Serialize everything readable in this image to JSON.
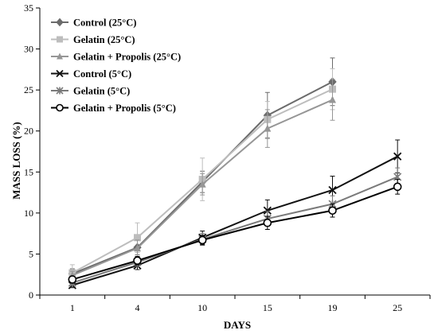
{
  "chart_data": {
    "type": "line",
    "xlabel": "DAYS",
    "ylabel": "MASS LOSS (%)",
    "categories": [
      "1",
      "4",
      "10",
      "15",
      "19",
      "25"
    ],
    "ylim": [
      0,
      35
    ],
    "yticks": [
      0,
      5,
      10,
      15,
      20,
      25,
      30,
      35
    ],
    "grid": false,
    "legend_position": "top-left",
    "series": [
      {
        "name": "Control (25°C)",
        "color": "#6b6b6b",
        "marker": "diamond",
        "values": [
          2.6,
          5.8,
          13.8,
          21.9,
          26.0,
          null
        ],
        "errors": [
          0.6,
          0.9,
          1.3,
          2.8,
          2.9,
          null
        ]
      },
      {
        "name": "Gelatin (25°C)",
        "color": "#bdbdbd",
        "marker": "square",
        "values": [
          2.7,
          7.0,
          14.1,
          21.4,
          25.1,
          null
        ],
        "errors": [
          1.0,
          1.8,
          2.6,
          2.2,
          2.5,
          null
        ]
      },
      {
        "name": "Gelatin + Propolis (25°C)",
        "color": "#969696",
        "marker": "triangle",
        "values": [
          2.4,
          5.7,
          13.5,
          20.3,
          23.8,
          null
        ],
        "errors": [
          0.5,
          1.0,
          1.3,
          2.3,
          2.5,
          null
        ]
      },
      {
        "name": "Control (5°C)",
        "color": "#111111",
        "marker": "x",
        "values": [
          1.2,
          3.6,
          7.0,
          10.3,
          12.8,
          16.9
        ],
        "errors": [
          0.3,
          0.5,
          0.8,
          1.3,
          1.7,
          2.0
        ]
      },
      {
        "name": "Gelatin (5°C)",
        "color": "#7a7a7a",
        "marker": "star",
        "values": [
          1.5,
          4.0,
          6.8,
          9.3,
          11.1,
          14.4
        ],
        "errors": [
          0.3,
          0.5,
          0.7,
          0.9,
          1.0,
          1.1
        ]
      },
      {
        "name": "Gelatin + Propolis (5°C)",
        "color": "#000000",
        "marker": "circle",
        "values": [
          1.9,
          4.2,
          6.7,
          8.8,
          10.3,
          13.2
        ],
        "errors": [
          0.3,
          0.5,
          0.6,
          0.8,
          0.8,
          0.9
        ]
      }
    ]
  }
}
